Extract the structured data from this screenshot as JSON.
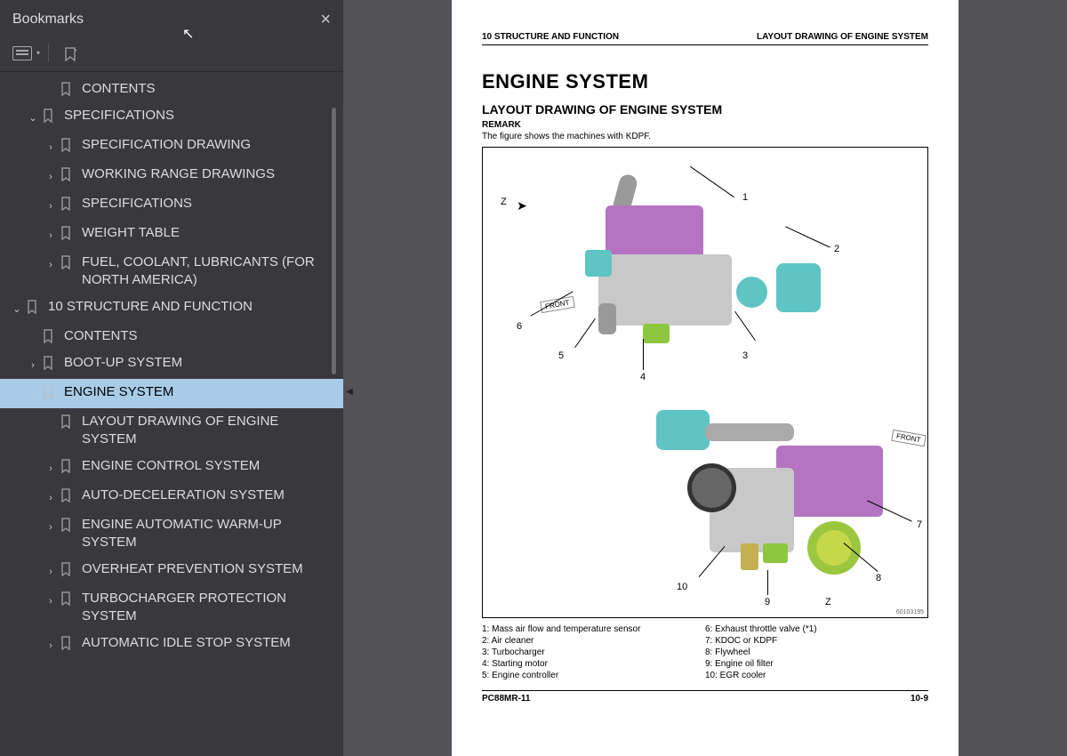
{
  "sidebar": {
    "title": "Bookmarks",
    "items": [
      {
        "ind": 2,
        "arrow": "",
        "label": "CONTENTS"
      },
      {
        "ind": 1,
        "arrow": "v",
        "label": "SPECIFICATIONS"
      },
      {
        "ind": 2,
        "arrow": ">",
        "label": "SPECIFICATION DRAWING"
      },
      {
        "ind": 2,
        "arrow": ">",
        "label": "WORKING RANGE DRAWINGS"
      },
      {
        "ind": 2,
        "arrow": ">",
        "label": "SPECIFICATIONS"
      },
      {
        "ind": 2,
        "arrow": ">",
        "label": "WEIGHT TABLE"
      },
      {
        "ind": 2,
        "arrow": ">",
        "label": "FUEL, COOLANT, LUBRICANTS (FOR NORTH AMERICA)"
      },
      {
        "ind": 0,
        "arrow": "v",
        "label": "10 STRUCTURE AND FUNCTION"
      },
      {
        "ind": 1,
        "arrow": "",
        "label": "CONTENTS"
      },
      {
        "ind": 1,
        "arrow": ">",
        "label": "BOOT-UP SYSTEM"
      },
      {
        "ind": 1,
        "arrow": "v",
        "label": "ENGINE SYSTEM",
        "selected": true
      },
      {
        "ind": 2,
        "arrow": "",
        "label": "LAYOUT DRAWING OF ENGINE SYSTEM"
      },
      {
        "ind": 2,
        "arrow": ">",
        "label": "ENGINE CONTROL SYSTEM"
      },
      {
        "ind": 2,
        "arrow": ">",
        "label": "AUTO-DECELERATION SYSTEM"
      },
      {
        "ind": 2,
        "arrow": ">",
        "label": "ENGINE AUTOMATIC WARM-UP SYSTEM"
      },
      {
        "ind": 2,
        "arrow": ">",
        "label": "OVERHEAT PREVENTION SYSTEM"
      },
      {
        "ind": 2,
        "arrow": ">",
        "label": "TURBOCHARGER PROTECTION SYSTEM"
      },
      {
        "ind": 2,
        "arrow": ">",
        "label": "AUTOMATIC IDLE STOP SYSTEM"
      }
    ]
  },
  "page": {
    "header_left": "10 STRUCTURE AND FUNCTION",
    "header_right": "LAYOUT DRAWING OF ENGINE SYSTEM",
    "h1": "ENGINE SYSTEM",
    "h2": "LAYOUT DRAWING OF ENGINE SYSTEM",
    "h3": "REMARK",
    "caption": "The figure shows the machines with KDPF.",
    "figure_id": "60103195",
    "callouts_top": [
      "Z",
      "1",
      "2",
      "3",
      "4",
      "5",
      "6"
    ],
    "callouts_bot": [
      "Z",
      "7",
      "8",
      "9",
      "10"
    ],
    "front_label": "FRONT",
    "legend_left": [
      "1: Mass air flow and temperature sensor",
      "2: Air cleaner",
      "3: Turbocharger",
      "4: Starting motor",
      "5: Engine controller"
    ],
    "legend_right": [
      "6: Exhaust throttle valve (*1)",
      "7: KDOC or KDPF",
      "8: Flywheel",
      "9: Engine oil filter",
      "10: EGR cooler"
    ],
    "footer_left": "PC88MR-11",
    "footer_right": "10-9"
  },
  "colors": {
    "sidebar_bg": "#38383d",
    "select_bg": "#a8cce8",
    "viewer_bg": "#525257",
    "purple": "#b574c1",
    "teal": "#5ec4c4",
    "green": "#8dc63f",
    "yellow": "#c4b050",
    "grey": "#b8b8b8"
  }
}
